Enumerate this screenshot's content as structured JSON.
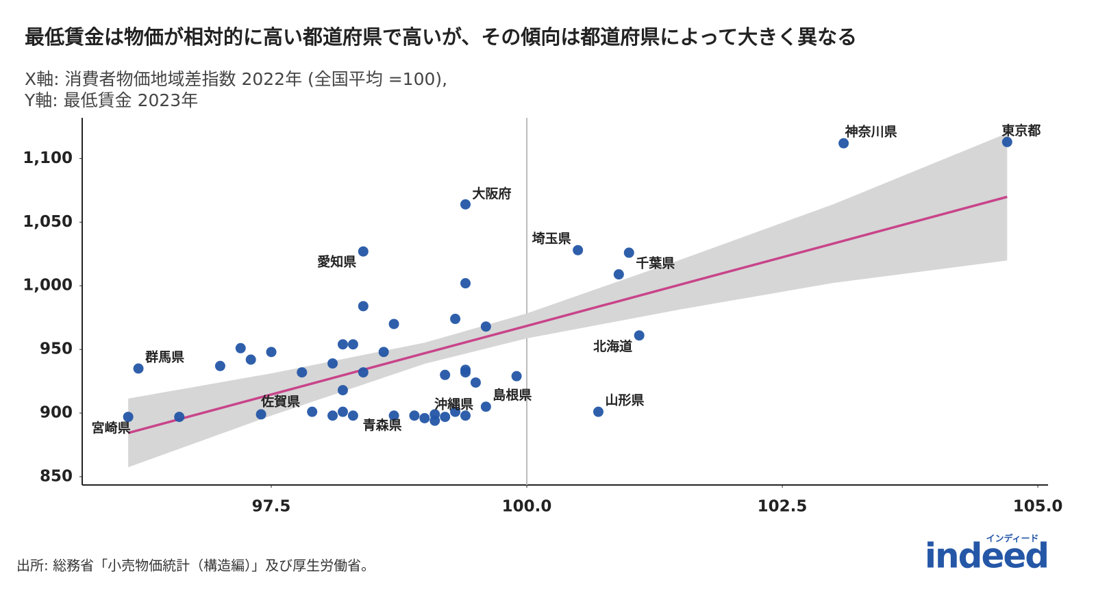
{
  "chart_data": {
    "type": "scatter",
    "title": "最低賃金は物価が相対的に高い都道府県で高いが、その傾向は都道府県によって大きく異なる",
    "subtitle": [
      "X軸: 消費者物価地域差指数 2022年 (全国平均 =100),",
      "Y軸: 最低賃金 2023年"
    ],
    "source": "出所: 総務省「小売物価統計（構造編）」及び厚生労働省。",
    "logo": {
      "kana": "インディード",
      "word": "indeed"
    },
    "color": "#2456a6",
    "x": [
      103.1,
      104.7,
      99.4,
      100.5,
      101.0,
      100.9,
      98.4,
      99.4,
      98.4,
      98.7,
      99.3,
      99.6,
      101.1,
      97.2,
      97.5,
      97.3,
      98.2,
      98.3,
      98.6,
      96.2,
      97.0,
      97.8,
      98.1,
      98.4,
      99.2,
      99.4,
      99.4,
      99.5,
      99.9,
      98.2,
      99.6,
      100.7,
      97.4,
      97.9,
      98.1,
      98.2,
      98.3,
      98.7,
      98.9,
      99.0,
      99.1,
      99.1,
      99.2,
      99.3,
      99.4,
      96.1,
      96.6
    ],
    "y": [
      1112,
      1113,
      1064,
      1028,
      1026,
      1009,
      1027,
      1002,
      984,
      970,
      974,
      968,
      961,
      951,
      948,
      942,
      954,
      954,
      948,
      935,
      937,
      932,
      939,
      932,
      930,
      934,
      932,
      924,
      929,
      918,
      905,
      901,
      899,
      901,
      898,
      901,
      898,
      898,
      898,
      896,
      899,
      894,
      897,
      901,
      898,
      897,
      897
    ],
    "labels": [
      "神奈川県",
      "東京都",
      "大阪府",
      "埼玉県",
      "千葉県",
      null,
      "愛知県",
      null,
      null,
      null,
      null,
      null,
      "北海道",
      null,
      null,
      null,
      null,
      null,
      null,
      "群馬県",
      null,
      null,
      null,
      null,
      null,
      null,
      null,
      null,
      null,
      null,
      "島根県",
      "山形県",
      "佐賀県",
      null,
      null,
      null,
      null,
      "青森県",
      null,
      null,
      null,
      null,
      null,
      "沖縄県",
      null,
      "宮崎県",
      null
    ],
    "fit": {
      "color": "#c8448a",
      "band_color": "#d6d6d6",
      "x": [
        96.1,
        97.5,
        99.0,
        100.0,
        101.5,
        103.0,
        104.7
      ],
      "y": [
        884.4,
        914.6,
        947.0,
        968.5,
        1000.9,
        1033.2,
        1069.9
      ],
      "lower": [
        857.4,
        898.0,
        938.7,
        958.7,
        981.4,
        1002.3,
        1019.9
      ],
      "upper": [
        911.4,
        931.2,
        955.3,
        978.3,
        1020.4,
        1064.1,
        1119.9
      ]
    },
    "vline": 100,
    "xlim": [
      95.65,
      105.1
    ],
    "ylim": [
      843.5,
      1132
    ],
    "xticks": [
      97.5,
      {
        "value": 100,
        "label": "100.0"
      },
      102.5,
      {
        "value": 105,
        "label": "105.0"
      }
    ],
    "yticks": [
      850,
      900,
      950,
      {
        "value": 1000,
        "label": "1,000"
      },
      {
        "value": 1050,
        "label": "1,050"
      },
      {
        "value": 1100,
        "label": "1,100"
      }
    ]
  }
}
